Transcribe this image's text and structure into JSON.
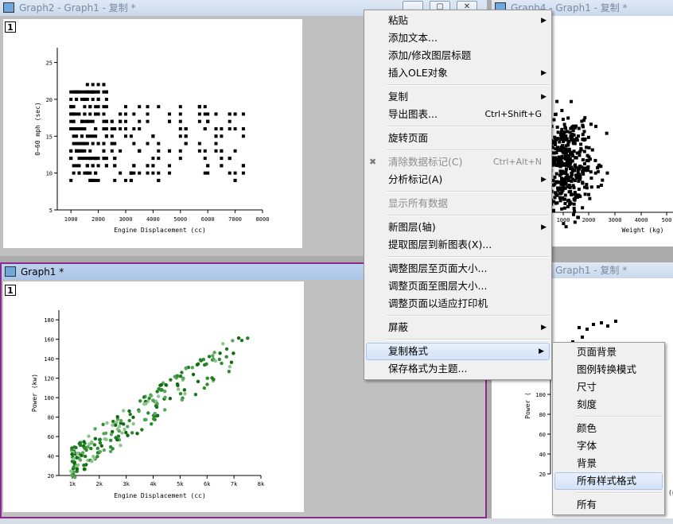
{
  "windows": {
    "top_left": {
      "title": "Graph2 - Graph1 - 复制 *",
      "layer": "1"
    },
    "top_right": {
      "title": "Graph4 - Graph1 - 复制 *"
    },
    "bottom_left": {
      "title": "Graph1 *",
      "layer": "1"
    },
    "bottom_right": {
      "title": "Graph1 - 复制 *"
    }
  },
  "charts": {
    "accel": {
      "xlabel": "Engine Displacement (cc)",
      "ylabel": "0~60 mph (sec)",
      "xticks": [
        "1000",
        "2000",
        "3000",
        "4000",
        "5000",
        "6000",
        "7000",
        "8000"
      ],
      "yticks": [
        "5",
        "10",
        "15",
        "20",
        "25"
      ]
    },
    "power": {
      "xlabel": "Engine Displacement (cc)",
      "ylabel": "Power (kw)",
      "xticks": [
        "1k",
        "2k",
        "3k",
        "4k",
        "5k",
        "6k",
        "7k",
        "8k"
      ],
      "yticks": [
        "20",
        "40",
        "60",
        "80",
        "100",
        "120",
        "140",
        "160",
        "180"
      ]
    },
    "weight": {
      "xlabel": "Weight (kg)",
      "xticks": [
        "1000",
        "2000",
        "3000",
        "4000",
        "500"
      ]
    },
    "power_right": {
      "ylabel": "Power (",
      "yticks": [
        "140",
        "120",
        "100",
        "80",
        "60",
        "40",
        "20"
      ],
      "xlabel_tail": "(n"
    }
  },
  "chart_data": [
    {
      "type": "scatter",
      "xlabel": "Engine Displacement (cc)",
      "ylabel": "0~60 mph (sec)",
      "xlim": [
        500,
        8000
      ],
      "ylim": [
        5,
        27
      ]
    },
    {
      "type": "scatter",
      "xlabel": "Engine Displacement (cc)",
      "ylabel": "Power (kw)",
      "xlim": [
        500,
        8000
      ],
      "ylim": [
        20,
        190
      ]
    }
  ],
  "context_menu": {
    "items": [
      {
        "label": "粘贴",
        "submenu": true
      },
      {
        "label": "添加文本..."
      },
      {
        "label": "添加/修改图层标题"
      },
      {
        "label": "插入OLE对象",
        "submenu": true
      },
      {
        "sep": true
      },
      {
        "label": "复制",
        "submenu": true
      },
      {
        "label": "导出图表...",
        "shortcut": "Ctrl+Shift+G"
      },
      {
        "sep": true
      },
      {
        "label": "旋转页面"
      },
      {
        "sep": true
      },
      {
        "label": "清除数据标记(C)",
        "shortcut": "Ctrl+Alt+N",
        "disabled": true,
        "icon": true
      },
      {
        "label": "分析标记(A)",
        "submenu": true
      },
      {
        "sep": true
      },
      {
        "label": "显示所有数据",
        "disabled": true
      },
      {
        "sep": true
      },
      {
        "label": "新图层(轴)",
        "submenu": true
      },
      {
        "label": "提取图层到新图表(X)..."
      },
      {
        "sep": true
      },
      {
        "label": "调整图层至页面大小..."
      },
      {
        "label": "调整页面至图层大小..."
      },
      {
        "label": "调整页面以适应打印机"
      },
      {
        "sep": true
      },
      {
        "label": "屏蔽",
        "submenu": true
      },
      {
        "sep": true
      },
      {
        "label": "复制格式",
        "submenu": true,
        "highlight": true
      },
      {
        "label": "保存格式为主题..."
      }
    ]
  },
  "submenu": {
    "items": [
      {
        "label": "页面背景"
      },
      {
        "label": "图例转换模式"
      },
      {
        "label": "尺寸"
      },
      {
        "label": "刻度"
      },
      {
        "sep": true
      },
      {
        "label": "颜色"
      },
      {
        "label": "字体"
      },
      {
        "label": "背景"
      },
      {
        "label": "所有样式格式",
        "highlight": true
      },
      {
        "sep": true
      },
      {
        "label": "所有"
      }
    ]
  }
}
